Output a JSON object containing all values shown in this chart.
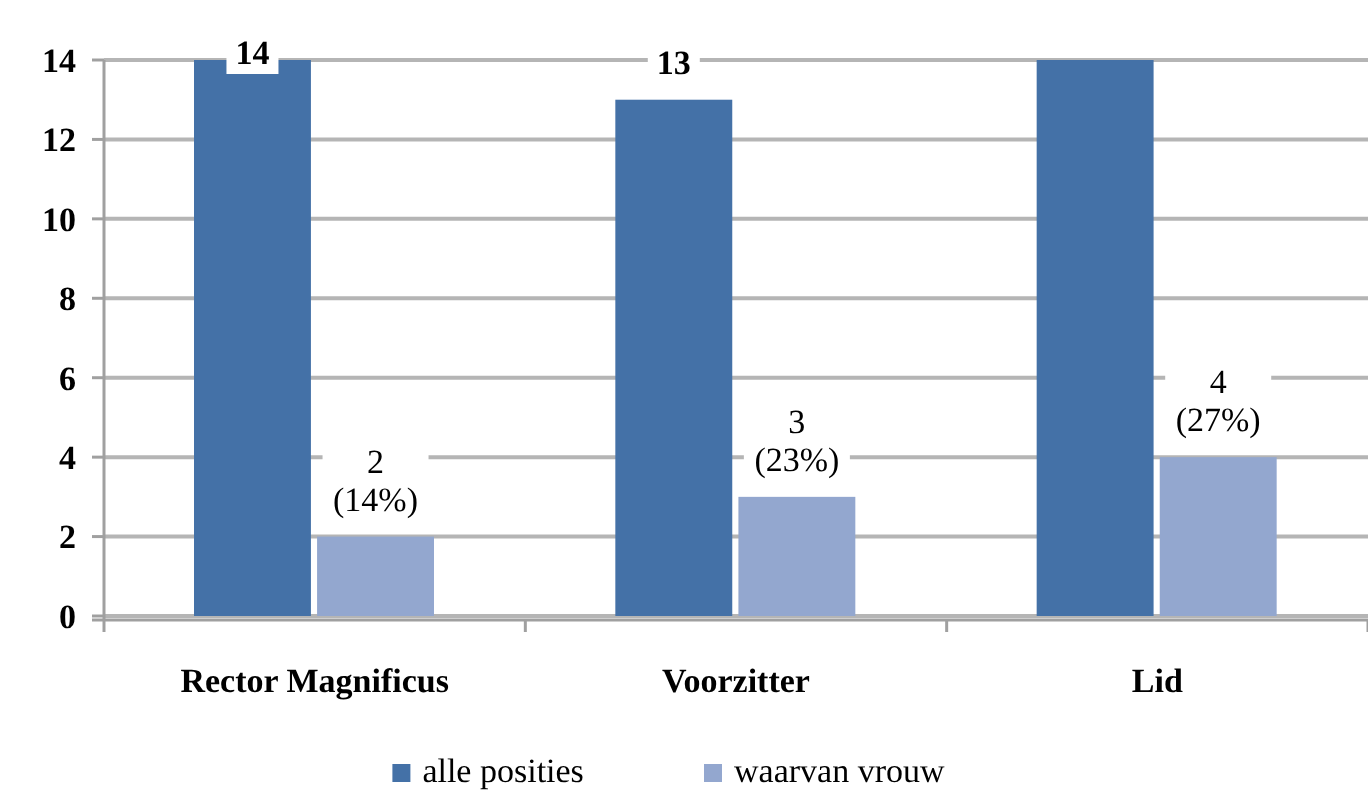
{
  "chart_data": {
    "type": "bar",
    "categories": [
      "Rector Magnificus",
      "Voorzitter",
      "Lid"
    ],
    "series": [
      {
        "name": "alle posities",
        "color": "#4471a7",
        "values": [
          14,
          13,
          14
        ],
        "value_labels": [
          "14",
          "13",
          null
        ]
      },
      {
        "name": "waarvan vrouw",
        "color": "#93a7cf",
        "values": [
          2,
          3,
          4
        ],
        "value_labels": [
          "2\n(14%)",
          "3\n(23%)",
          "4\n(27%)"
        ]
      }
    ],
    "ylim": [
      0,
      14
    ],
    "yticks": [
      0,
      2,
      4,
      6,
      8,
      10,
      12,
      14
    ],
    "grid": "y",
    "legend": "bottom"
  }
}
